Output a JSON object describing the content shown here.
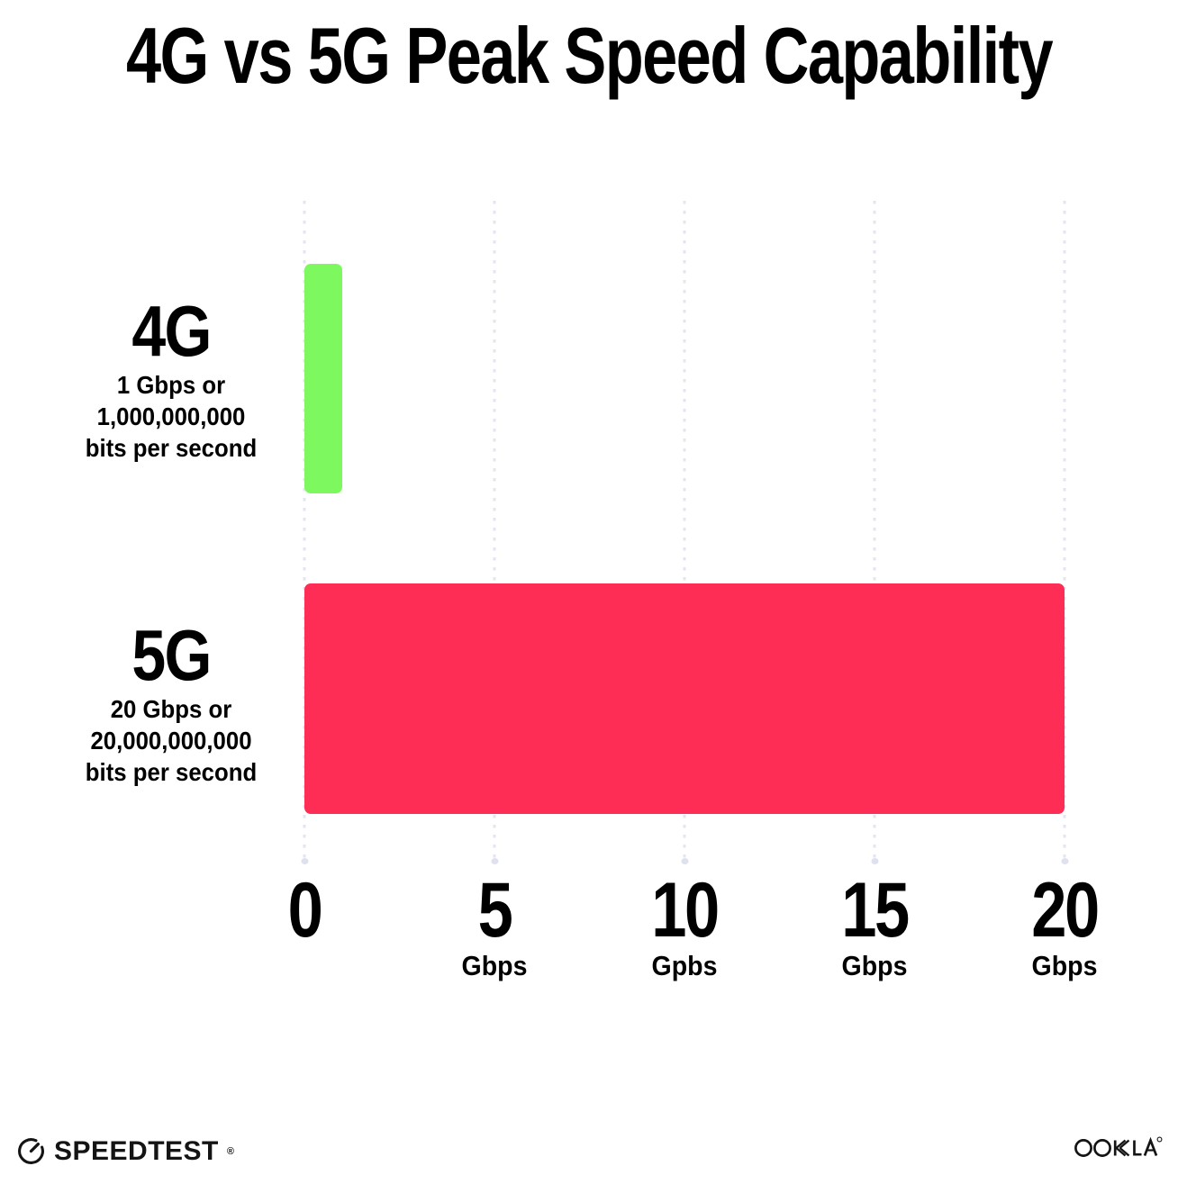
{
  "title": "4G vs 5G Peak Speed Capability",
  "chart_data": {
    "type": "bar",
    "orientation": "horizontal",
    "title": "4G vs 5G Peak Speed Capability",
    "categories": [
      "4G",
      "5G"
    ],
    "values": [
      1,
      20
    ],
    "xlim": [
      0,
      20
    ],
    "grid": "vertical-dotted",
    "gridline_color": "#E3E5F0",
    "rows": [
      {
        "name": "4G",
        "value": 1,
        "color": "#7DF95F",
        "desc_lines": [
          "1 Gbps or",
          "1,000,000,000",
          "bits per second"
        ]
      },
      {
        "name": "5G",
        "value": 20,
        "color": "#FD2D56",
        "desc_lines": [
          "20 Gbps or",
          "20,000,000,000",
          "bits per second"
        ]
      }
    ],
    "x_ticks": [
      {
        "value": "0",
        "unit": ""
      },
      {
        "value": "5",
        "unit": "Gbps"
      },
      {
        "value": "10",
        "unit": "Gpbs"
      },
      {
        "value": "15",
        "unit": "Gbps"
      },
      {
        "value": "20",
        "unit": "Gbps"
      }
    ]
  },
  "footer": {
    "speedtest_label": "SPEEDTEST",
    "speedtest_mark": "®",
    "ookla_label": "OOKLA",
    "ookla_mark": "®"
  }
}
